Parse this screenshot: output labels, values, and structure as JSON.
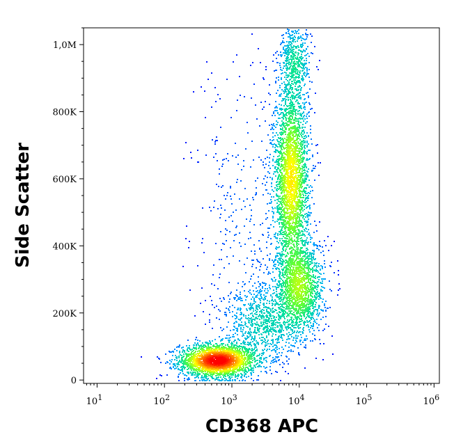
{
  "chart_data": {
    "type": "scatter",
    "subtype": "flow-cytometry density dot plot",
    "xlabel": "CD368 APC",
    "ylabel": "Side Scatter",
    "x_scale": "log",
    "xlim": [
      6.3,
      1200000
    ],
    "ylim": [
      -10000,
      1050000
    ],
    "x_ticks": [
      {
        "value": 10,
        "base": "10",
        "exp": "1"
      },
      {
        "value": 100,
        "base": "10",
        "exp": "2"
      },
      {
        "value": 1000,
        "base": "10",
        "exp": "3"
      },
      {
        "value": 10000,
        "base": "10",
        "exp": "4"
      },
      {
        "value": 100000,
        "base": "10",
        "exp": "5"
      },
      {
        "value": 1000000,
        "base": "10",
        "exp": "6"
      }
    ],
    "y_ticks": [
      {
        "value": 0,
        "label": "0"
      },
      {
        "value": 200000,
        "label": "200K"
      },
      {
        "value": 400000,
        "label": "400K"
      },
      {
        "value": 600000,
        "label": "600K"
      },
      {
        "value": 800000,
        "label": "800K"
      },
      {
        "value": 1000000,
        "label": "1,0M"
      }
    ],
    "density_colormap": [
      "#0000ff",
      "#00aaff",
      "#00e0a0",
      "#66ff33",
      "#ffff00",
      "#ff8000",
      "#ff0000"
    ],
    "populations": [
      {
        "x_center": 600,
        "y_center": 60000,
        "x_spread_decades": 0.28,
        "y_spread": 25000,
        "weight": 0.3,
        "peak": 1.0
      },
      {
        "x_center": 7500,
        "y_center": 600000,
        "x_spread_decades": 0.13,
        "y_spread": 140000,
        "weight": 0.32,
        "peak": 0.5
      },
      {
        "x_center": 10000,
        "y_center": 280000,
        "x_spread_decades": 0.18,
        "y_spread": 70000,
        "weight": 0.18,
        "peak": 0.35
      },
      {
        "x_center": 8500,
        "y_center": 950000,
        "x_spread_decades": 0.12,
        "y_spread": 60000,
        "weight": 0.06,
        "peak": 0.15
      },
      {
        "x_center": 3000,
        "y_center": 170000,
        "x_spread_decades": 0.3,
        "y_spread": 60000,
        "weight": 0.1,
        "peak": 0.12
      },
      {
        "x_center": 1500,
        "y_center": 500000,
        "x_spread_decades": 0.4,
        "y_spread": 250000,
        "weight": 0.04,
        "peak": 0.02
      }
    ],
    "grid": false,
    "legend": "none"
  }
}
